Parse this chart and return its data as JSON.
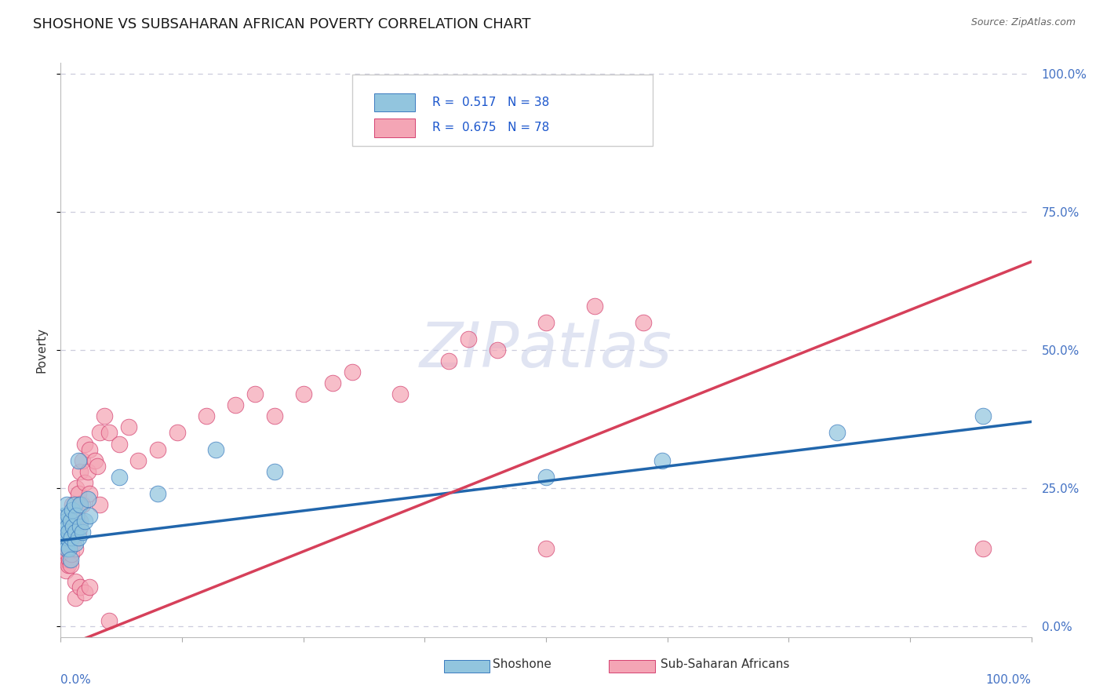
{
  "title": "SHOSHONE VS SUBSAHARAN AFRICAN POVERTY CORRELATION CHART",
  "source": "Source: ZipAtlas.com",
  "ylabel": "Poverty",
  "shoshone_color": "#92c5de",
  "subsaharan_color": "#f4a5b5",
  "shoshone_edge_color": "#3a7abf",
  "subsaharan_edge_color": "#d44070",
  "shoshone_line_color": "#2166ac",
  "subsaharan_line_color": "#d6405a",
  "ytick_label_color": "#4472c4",
  "watermark_color": "#c8cfe8",
  "grid_color": "#ccccdd",
  "shoshone_x": [
    0.002,
    0.003,
    0.004,
    0.004,
    0.005,
    0.005,
    0.006,
    0.006,
    0.007,
    0.007,
    0.008,
    0.008,
    0.009,
    0.01,
    0.01,
    0.011,
    0.012,
    0.013,
    0.014,
    0.015,
    0.015,
    0.016,
    0.018,
    0.018,
    0.02,
    0.02,
    0.022,
    0.025,
    0.028,
    0.03,
    0.06,
    0.1,
    0.16,
    0.22,
    0.5,
    0.62,
    0.8,
    0.95
  ],
  "shoshone_y": [
    0.17,
    0.16,
    0.18,
    0.2,
    0.15,
    0.19,
    0.14,
    0.22,
    0.16,
    0.18,
    0.2,
    0.17,
    0.14,
    0.19,
    0.12,
    0.16,
    0.21,
    0.18,
    0.22,
    0.17,
    0.15,
    0.2,
    0.16,
    0.3,
    0.18,
    0.22,
    0.17,
    0.19,
    0.23,
    0.2,
    0.27,
    0.24,
    0.32,
    0.28,
    0.27,
    0.3,
    0.35,
    0.38
  ],
  "subsaharan_x": [
    0.001,
    0.002,
    0.002,
    0.003,
    0.003,
    0.004,
    0.004,
    0.005,
    0.005,
    0.005,
    0.006,
    0.006,
    0.006,
    0.007,
    0.007,
    0.008,
    0.008,
    0.008,
    0.009,
    0.009,
    0.01,
    0.01,
    0.01,
    0.011,
    0.012,
    0.012,
    0.013,
    0.014,
    0.015,
    0.015,
    0.016,
    0.016,
    0.017,
    0.018,
    0.018,
    0.019,
    0.02,
    0.02,
    0.022,
    0.022,
    0.025,
    0.025,
    0.028,
    0.03,
    0.03,
    0.035,
    0.038,
    0.04,
    0.04,
    0.045,
    0.05,
    0.06,
    0.07,
    0.08,
    0.1,
    0.12,
    0.15,
    0.18,
    0.2,
    0.22,
    0.25,
    0.28,
    0.3,
    0.35,
    0.4,
    0.42,
    0.45,
    0.5,
    0.55,
    0.6,
    0.5,
    0.95,
    0.015,
    0.015,
    0.02,
    0.025,
    0.03,
    0.05
  ],
  "subsaharan_y": [
    0.15,
    0.13,
    0.17,
    0.12,
    0.16,
    0.14,
    0.18,
    0.1,
    0.13,
    0.17,
    0.12,
    0.15,
    0.19,
    0.13,
    0.17,
    0.11,
    0.14,
    0.18,
    0.12,
    0.16,
    0.11,
    0.15,
    0.19,
    0.13,
    0.17,
    0.22,
    0.15,
    0.19,
    0.14,
    0.21,
    0.18,
    0.25,
    0.2,
    0.17,
    0.24,
    0.22,
    0.19,
    0.28,
    0.22,
    0.3,
    0.26,
    0.33,
    0.28,
    0.24,
    0.32,
    0.3,
    0.29,
    0.35,
    0.22,
    0.38,
    0.35,
    0.33,
    0.36,
    0.3,
    0.32,
    0.35,
    0.38,
    0.4,
    0.42,
    0.38,
    0.42,
    0.44,
    0.46,
    0.42,
    0.48,
    0.52,
    0.5,
    0.55,
    0.58,
    0.55,
    0.14,
    0.14,
    0.05,
    0.08,
    0.07,
    0.06,
    0.07,
    0.01
  ],
  "shoshone_intercept": 0.155,
  "shoshone_slope": 0.215,
  "subsaharan_intercept": -0.04,
  "subsaharan_slope": 0.7,
  "legend_text_1": "R =  0.517   N = 38",
  "legend_text_2": "R =  0.675   N = 78",
  "label_shoshone": "Shoshone",
  "label_subsaharan": "Sub-Saharan Africans",
  "watermark": "ZIPatlas",
  "xlim": [
    0,
    1.0
  ],
  "ylim": [
    0,
    1.0
  ],
  "yticks": [
    0,
    0.25,
    0.5,
    0.75,
    1.0
  ],
  "ytick_labels": [
    "0.0%",
    "25.0%",
    "50.0%",
    "75.0%",
    "100.0%"
  ]
}
